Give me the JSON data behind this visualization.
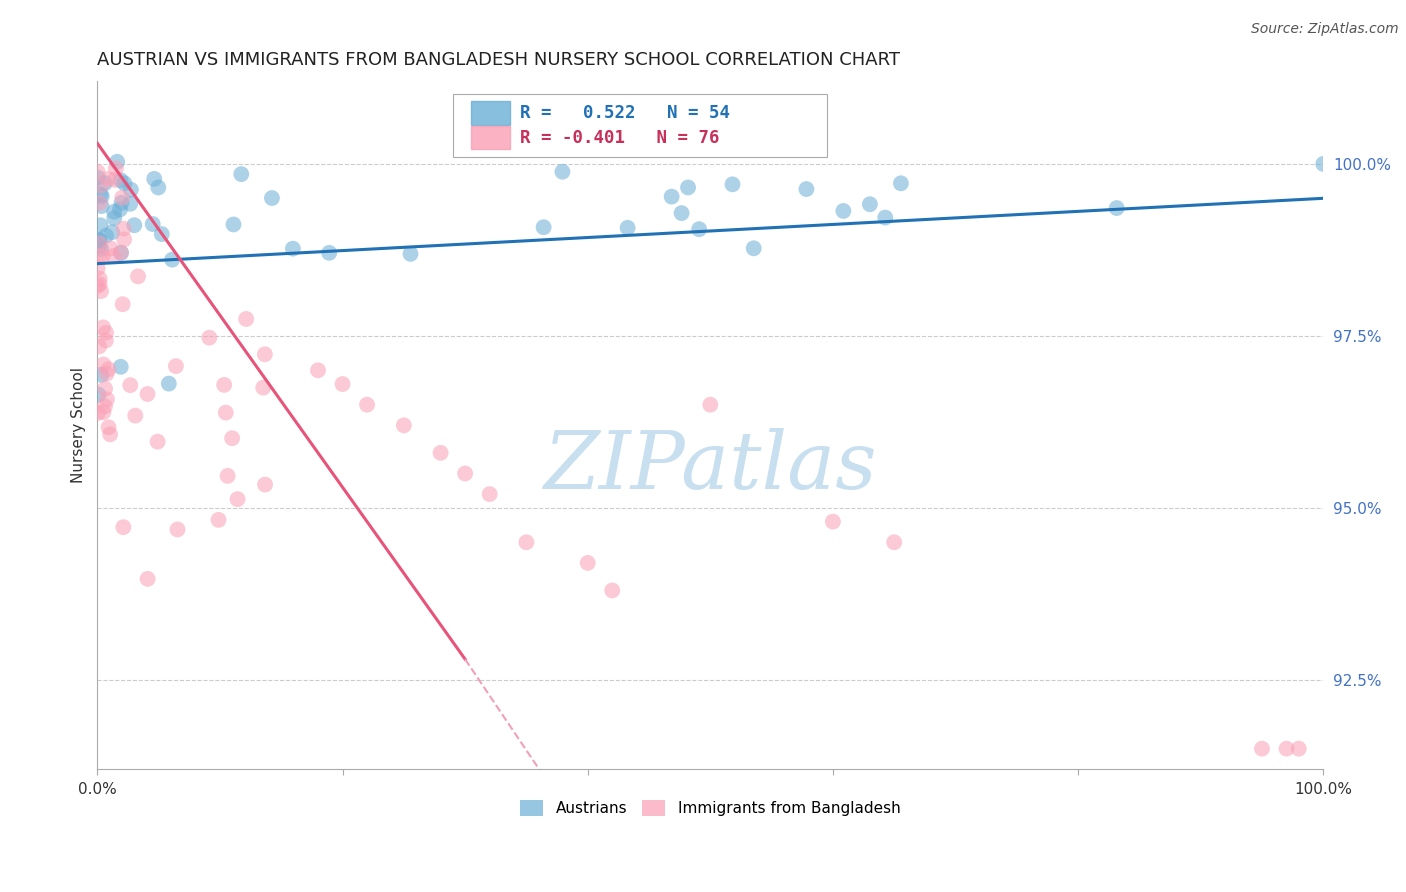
{
  "title": "AUSTRIAN VS IMMIGRANTS FROM BANGLADESH NURSERY SCHOOL CORRELATION CHART",
  "source": "Source: ZipAtlas.com",
  "ylabel": "Nursery School",
  "yticks": [
    92.5,
    95.0,
    97.5,
    100.0
  ],
  "ytick_labels": [
    "92.5%",
    "95.0%",
    "97.5%",
    "100.0%"
  ],
  "xlim": [
    0.0,
    100.0
  ],
  "ylim": [
    91.2,
    101.2
  ],
  "blue_R": 0.522,
  "blue_N": 54,
  "pink_R": -0.401,
  "pink_N": 76,
  "blue_color": "#6baed6",
  "pink_color": "#fa9fb5",
  "blue_line_color": "#2171b5",
  "pink_line_color": "#e8537a",
  "pink_dash_color": "#f0a0b8",
  "background_color": "#ffffff",
  "grid_color": "#cccccc",
  "watermark_zip_color": "#c8dff0",
  "watermark_atlas_color": "#c8dff0",
  "title_fontsize": 13,
  "source_fontsize": 10,
  "ytick_color": "#4472c4",
  "blue_legend_color": "#2171b5",
  "pink_legend_color": "#c7305a",
  "blue_line_y0": 98.55,
  "blue_line_y1": 99.5,
  "pink_line_y0": 100.3,
  "pink_line_x_solid_end": 30.0,
  "pink_line_y_solid_end": 92.8,
  "pink_line_x_dash_end": 70.0,
  "pink_line_y_dash_end": 82.2
}
